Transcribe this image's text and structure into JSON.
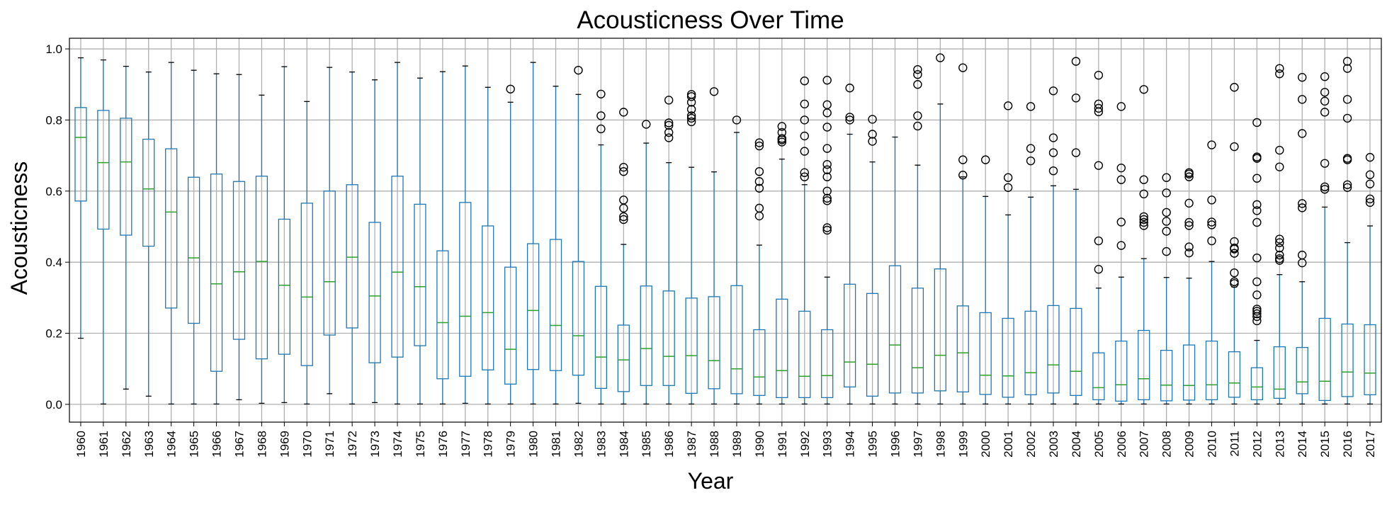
{
  "chart_data": {
    "type": "box",
    "title": "Acousticness Over Time",
    "xlabel": "Year",
    "ylabel": "Acousticness",
    "ylim": [
      -0.05,
      1.03
    ],
    "yticks": [
      0.0,
      0.2,
      0.4,
      0.6,
      0.8,
      1.0
    ],
    "ytick_labels": [
      "0.0",
      "0.2",
      "0.4",
      "0.6",
      "0.8",
      "1.0"
    ],
    "grid": true,
    "colors": {
      "box": "#1f77b4",
      "median": "#2ca02c",
      "whisker": "#1f77b4",
      "flier": "#000000",
      "grid": "#b0b0b0"
    },
    "categories": [
      "1960",
      "1961",
      "1962",
      "1963",
      "1964",
      "1965",
      "1966",
      "1967",
      "1968",
      "1969",
      "1970",
      "1971",
      "1972",
      "1973",
      "1974",
      "1975",
      "1976",
      "1977",
      "1978",
      "1979",
      "1980",
      "1981",
      "1982",
      "1983",
      "1984",
      "1985",
      "1986",
      "1987",
      "1988",
      "1989",
      "1990",
      "1991",
      "1992",
      "1993",
      "1994",
      "1995",
      "1996",
      "1997",
      "1998",
      "1999",
      "2000",
      "2001",
      "2002",
      "2003",
      "2004",
      "2005",
      "2006",
      "2007",
      "2008",
      "2009",
      "2010",
      "2011",
      "2012",
      "2013",
      "2014",
      "2015",
      "2016",
      "2017"
    ],
    "boxes": [
      {
        "whislo": 0.186,
        "q1": 0.572,
        "med": 0.751,
        "q3": 0.835,
        "whishi": 0.975,
        "fliers": []
      },
      {
        "whislo": 0.001,
        "q1": 0.493,
        "med": 0.68,
        "q3": 0.827,
        "whishi": 0.969,
        "fliers": []
      },
      {
        "whislo": 0.043,
        "q1": 0.476,
        "med": 0.682,
        "q3": 0.805,
        "whishi": 0.951,
        "fliers": []
      },
      {
        "whislo": 0.023,
        "q1": 0.445,
        "med": 0.606,
        "q3": 0.746,
        "whishi": 0.935,
        "fliers": []
      },
      {
        "whislo": 0.001,
        "q1": 0.271,
        "med": 0.541,
        "q3": 0.719,
        "whishi": 0.962,
        "fliers": []
      },
      {
        "whislo": 0.001,
        "q1": 0.228,
        "med": 0.412,
        "q3": 0.639,
        "whishi": 0.94,
        "fliers": []
      },
      {
        "whislo": 0.001,
        "q1": 0.093,
        "med": 0.339,
        "q3": 0.648,
        "whishi": 0.93,
        "fliers": []
      },
      {
        "whislo": 0.013,
        "q1": 0.183,
        "med": 0.373,
        "q3": 0.627,
        "whishi": 0.928,
        "fliers": []
      },
      {
        "whislo": 0.003,
        "q1": 0.128,
        "med": 0.402,
        "q3": 0.642,
        "whishi": 0.87,
        "fliers": []
      },
      {
        "whislo": 0.005,
        "q1": 0.141,
        "med": 0.335,
        "q3": 0.521,
        "whishi": 0.95,
        "fliers": []
      },
      {
        "whislo": 0.001,
        "q1": 0.109,
        "med": 0.302,
        "q3": 0.566,
        "whishi": 0.852,
        "fliers": []
      },
      {
        "whislo": 0.03,
        "q1": 0.195,
        "med": 0.345,
        "q3": 0.6,
        "whishi": 0.948,
        "fliers": []
      },
      {
        "whislo": 0.001,
        "q1": 0.215,
        "med": 0.414,
        "q3": 0.618,
        "whishi": 0.935,
        "fliers": []
      },
      {
        "whislo": 0.005,
        "q1": 0.117,
        "med": 0.305,
        "q3": 0.512,
        "whishi": 0.913,
        "fliers": []
      },
      {
        "whislo": 0.001,
        "q1": 0.133,
        "med": 0.372,
        "q3": 0.642,
        "whishi": 0.962,
        "fliers": []
      },
      {
        "whislo": 0.001,
        "q1": 0.165,
        "med": 0.331,
        "q3": 0.563,
        "whishi": 0.918,
        "fliers": []
      },
      {
        "whislo": 0.001,
        "q1": 0.072,
        "med": 0.23,
        "q3": 0.432,
        "whishi": 0.936,
        "fliers": []
      },
      {
        "whislo": 0.003,
        "q1": 0.079,
        "med": 0.248,
        "q3": 0.568,
        "whishi": 0.952,
        "fliers": []
      },
      {
        "whislo": 0.001,
        "q1": 0.097,
        "med": 0.258,
        "q3": 0.502,
        "whishi": 0.892,
        "fliers": []
      },
      {
        "whislo": 0.001,
        "q1": 0.057,
        "med": 0.155,
        "q3": 0.386,
        "whishi": 0.85,
        "fliers": [
          0.887
        ]
      },
      {
        "whislo": 0.001,
        "q1": 0.098,
        "med": 0.264,
        "q3": 0.452,
        "whishi": 0.962,
        "fliers": []
      },
      {
        "whislo": 0.001,
        "q1": 0.095,
        "med": 0.222,
        "q3": 0.464,
        "whishi": 0.895,
        "fliers": []
      },
      {
        "whislo": 0.003,
        "q1": 0.082,
        "med": 0.193,
        "q3": 0.402,
        "whishi": 0.872,
        "fliers": [
          0.94
        ]
      },
      {
        "whislo": 0.001,
        "q1": 0.045,
        "med": 0.133,
        "q3": 0.332,
        "whishi": 0.73,
        "fliers": [
          0.775,
          0.812,
          0.873
        ]
      },
      {
        "whislo": 0.001,
        "q1": 0.036,
        "med": 0.125,
        "q3": 0.223,
        "whishi": 0.45,
        "fliers": [
          0.52,
          0.528,
          0.552,
          0.575,
          0.655,
          0.667,
          0.822
        ]
      },
      {
        "whislo": 0.001,
        "q1": 0.053,
        "med": 0.157,
        "q3": 0.333,
        "whishi": 0.735,
        "fliers": [
          0.788
        ]
      },
      {
        "whislo": 0.001,
        "q1": 0.053,
        "med": 0.135,
        "q3": 0.319,
        "whishi": 0.68,
        "fliers": [
          0.75,
          0.765,
          0.785,
          0.792,
          0.856
        ]
      },
      {
        "whislo": 0.001,
        "q1": 0.031,
        "med": 0.137,
        "q3": 0.299,
        "whishi": 0.667,
        "fliers": [
          0.795,
          0.805,
          0.812,
          0.83,
          0.85,
          0.866,
          0.872
        ]
      },
      {
        "whislo": 0.001,
        "q1": 0.044,
        "med": 0.123,
        "q3": 0.303,
        "whishi": 0.654,
        "fliers": [
          0.88
        ]
      },
      {
        "whislo": 0.001,
        "q1": 0.03,
        "med": 0.1,
        "q3": 0.334,
        "whishi": 0.765,
        "fliers": [
          0.8
        ]
      },
      {
        "whislo": 0.001,
        "q1": 0.025,
        "med": 0.077,
        "q3": 0.21,
        "whishi": 0.448,
        "fliers": [
          0.53,
          0.552,
          0.608,
          0.627,
          0.655,
          0.727,
          0.736
        ]
      },
      {
        "whislo": 0.001,
        "q1": 0.019,
        "med": 0.095,
        "q3": 0.296,
        "whishi": 0.69,
        "fliers": [
          0.738,
          0.744,
          0.748,
          0.765,
          0.782
        ]
      },
      {
        "whislo": 0.001,
        "q1": 0.019,
        "med": 0.079,
        "q3": 0.262,
        "whishi": 0.618,
        "fliers": [
          0.64,
          0.652,
          0.712,
          0.755,
          0.8,
          0.845,
          0.91
        ]
      },
      {
        "whislo": 0.001,
        "q1": 0.019,
        "med": 0.081,
        "q3": 0.21,
        "whishi": 0.358,
        "fliers": [
          0.49,
          0.497,
          0.573,
          0.58,
          0.6,
          0.64,
          0.66,
          0.675,
          0.72,
          0.78,
          0.82,
          0.843,
          0.912
        ]
      },
      {
        "whislo": 0.001,
        "q1": 0.049,
        "med": 0.119,
        "q3": 0.338,
        "whishi": 0.76,
        "fliers": [
          0.8,
          0.808,
          0.89
        ]
      },
      {
        "whislo": 0.001,
        "q1": 0.023,
        "med": 0.113,
        "q3": 0.312,
        "whishi": 0.682,
        "fliers": [
          0.74,
          0.76,
          0.802
        ]
      },
      {
        "whislo": 0.001,
        "q1": 0.032,
        "med": 0.167,
        "q3": 0.39,
        "whishi": 0.752,
        "fliers": []
      },
      {
        "whislo": 0.001,
        "q1": 0.032,
        "med": 0.103,
        "q3": 0.327,
        "whishi": 0.673,
        "fliers": [
          0.783,
          0.812,
          0.9,
          0.928,
          0.942
        ]
      },
      {
        "whislo": 0.001,
        "q1": 0.038,
        "med": 0.138,
        "q3": 0.381,
        "whishi": 0.845,
        "fliers": [
          0.975
        ]
      },
      {
        "whislo": 0.001,
        "q1": 0.035,
        "med": 0.145,
        "q3": 0.277,
        "whishi": 0.64,
        "fliers": [
          0.645,
          0.688,
          0.947
        ]
      },
      {
        "whislo": 0.001,
        "q1": 0.028,
        "med": 0.082,
        "q3": 0.258,
        "whishi": 0.585,
        "fliers": [
          0.688
        ]
      },
      {
        "whislo": 0.001,
        "q1": 0.02,
        "med": 0.08,
        "q3": 0.242,
        "whishi": 0.533,
        "fliers": [
          0.61,
          0.638,
          0.84
        ]
      },
      {
        "whislo": 0.001,
        "q1": 0.027,
        "med": 0.089,
        "q3": 0.262,
        "whishi": 0.583,
        "fliers": [
          0.685,
          0.72,
          0.838
        ]
      },
      {
        "whislo": 0.001,
        "q1": 0.032,
        "med": 0.111,
        "q3": 0.278,
        "whishi": 0.615,
        "fliers": [
          0.657,
          0.708,
          0.75,
          0.882
        ]
      },
      {
        "whislo": 0.001,
        "q1": 0.025,
        "med": 0.093,
        "q3": 0.27,
        "whishi": 0.605,
        "fliers": [
          0.708,
          0.862,
          0.965
        ]
      },
      {
        "whislo": 0.001,
        "q1": 0.013,
        "med": 0.047,
        "q3": 0.145,
        "whishi": 0.327,
        "fliers": [
          0.38,
          0.46,
          0.672,
          0.823,
          0.833,
          0.845,
          0.926
        ]
      },
      {
        "whislo": 0.001,
        "q1": 0.009,
        "med": 0.055,
        "q3": 0.178,
        "whishi": 0.358,
        "fliers": [
          0.447,
          0.513,
          0.632,
          0.665,
          0.838
        ]
      },
      {
        "whislo": 0.001,
        "q1": 0.013,
        "med": 0.072,
        "q3": 0.208,
        "whishi": 0.41,
        "fliers": [
          0.503,
          0.512,
          0.52,
          0.528,
          0.592,
          0.632,
          0.886
        ]
      },
      {
        "whislo": 0.001,
        "q1": 0.01,
        "med": 0.054,
        "q3": 0.152,
        "whishi": 0.357,
        "fliers": [
          0.43,
          0.487,
          0.515,
          0.54,
          0.595,
          0.638
        ]
      },
      {
        "whislo": 0.001,
        "q1": 0.012,
        "med": 0.053,
        "q3": 0.167,
        "whishi": 0.355,
        "fliers": [
          0.426,
          0.443,
          0.503,
          0.512,
          0.566,
          0.64,
          0.648,
          0.652
        ]
      },
      {
        "whislo": 0.001,
        "q1": 0.013,
        "med": 0.055,
        "q3": 0.178,
        "whishi": 0.402,
        "fliers": [
          0.46,
          0.505,
          0.513,
          0.575,
          0.73
        ]
      },
      {
        "whislo": 0.001,
        "q1": 0.02,
        "med": 0.06,
        "q3": 0.148,
        "whishi": 0.33,
        "fliers": [
          0.34,
          0.345,
          0.37,
          0.425,
          0.437,
          0.44,
          0.458,
          0.725,
          0.892
        ]
      },
      {
        "whislo": 0.001,
        "q1": 0.013,
        "med": 0.049,
        "q3": 0.103,
        "whishi": 0.18,
        "fliers": [
          0.235,
          0.247,
          0.255,
          0.262,
          0.268,
          0.308,
          0.345,
          0.412,
          0.512,
          0.545,
          0.562,
          0.636,
          0.692,
          0.696,
          0.793
        ]
      },
      {
        "whislo": 0.001,
        "q1": 0.017,
        "med": 0.043,
        "q3": 0.162,
        "whishi": 0.365,
        "fliers": [
          0.405,
          0.41,
          0.42,
          0.44,
          0.455,
          0.465,
          0.668,
          0.715,
          0.93,
          0.945
        ]
      },
      {
        "whislo": 0.001,
        "q1": 0.03,
        "med": 0.063,
        "q3": 0.16,
        "whishi": 0.345,
        "fliers": [
          0.398,
          0.42,
          0.553,
          0.565,
          0.762,
          0.858,
          0.92
        ]
      },
      {
        "whislo": 0.001,
        "q1": 0.011,
        "med": 0.065,
        "q3": 0.242,
        "whishi": 0.555,
        "fliers": [
          0.605,
          0.612,
          0.678,
          0.822,
          0.853,
          0.878,
          0.922
        ]
      },
      {
        "whislo": 0.001,
        "q1": 0.022,
        "med": 0.091,
        "q3": 0.226,
        "whishi": 0.455,
        "fliers": [
          0.61,
          0.618,
          0.688,
          0.692,
          0.805,
          0.858,
          0.945,
          0.965
        ]
      },
      {
        "whislo": 0.001,
        "q1": 0.027,
        "med": 0.088,
        "q3": 0.224,
        "whishi": 0.502,
        "fliers": [
          0.568,
          0.578,
          0.62,
          0.646,
          0.695
        ]
      }
    ]
  }
}
